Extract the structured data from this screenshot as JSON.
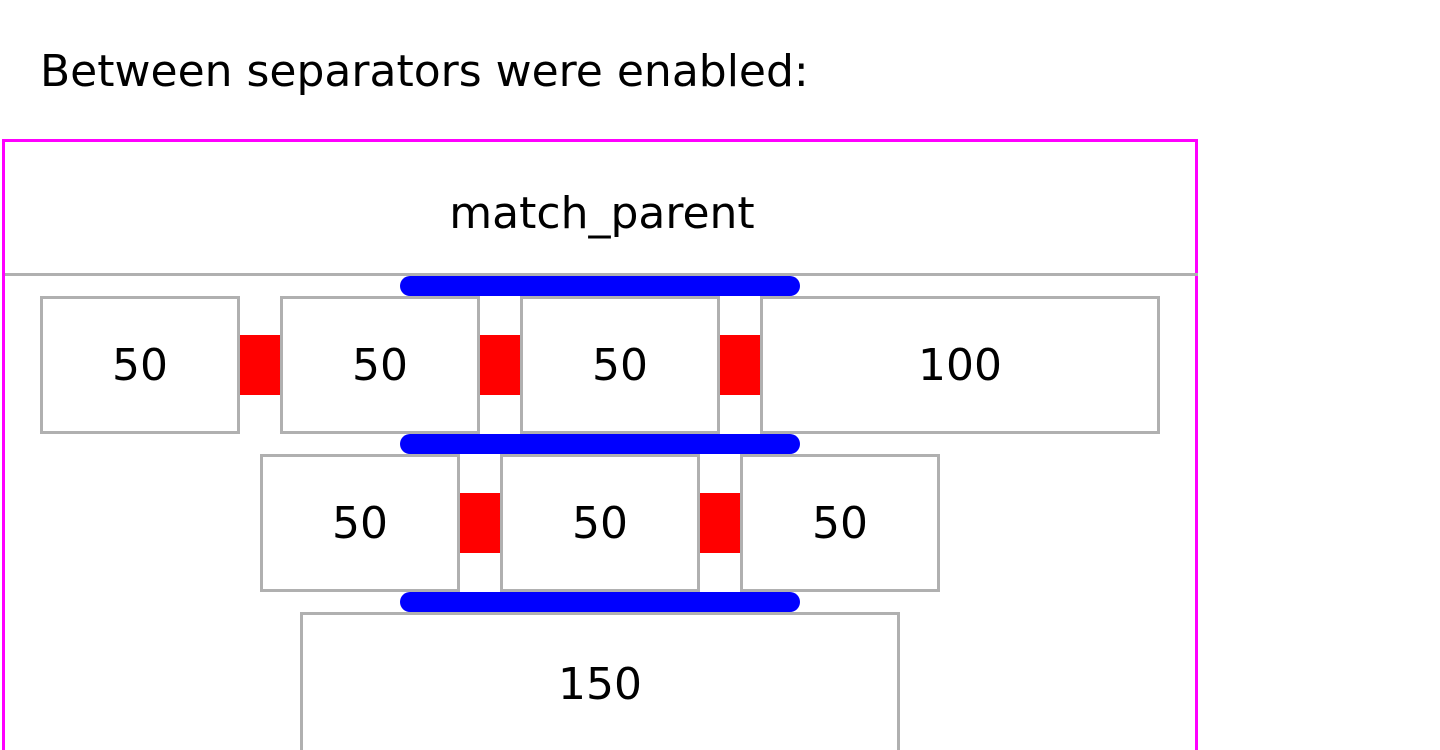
{
  "heading": "Between separators were enabled:",
  "container": {
    "header_label": "match_parent"
  },
  "rows": [
    {
      "items": [
        "50",
        "50",
        "50",
        "100"
      ]
    },
    {
      "items": [
        "50",
        "50",
        "50"
      ]
    },
    {
      "items": [
        "150"
      ]
    }
  ],
  "colors": {
    "container_border": "#ff00ff",
    "item_border": "#b0b0b0",
    "item_separator": "#ff0000",
    "line_separator": "#0000ff"
  }
}
